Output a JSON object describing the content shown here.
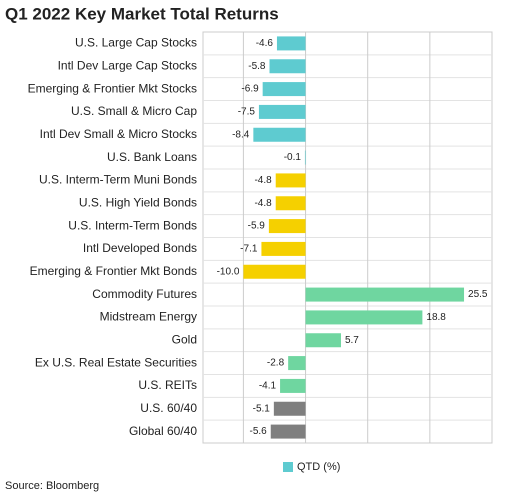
{
  "chart_data": {
    "type": "bar",
    "orientation": "horizontal",
    "title": "Q1 2022 Key Market Total Returns",
    "categories": [
      "U.S. Large Cap Stocks",
      "Intl Dev Large Cap Stocks",
      "Emerging & Frontier Mkt Stocks",
      "U.S. Small & Micro Cap",
      "Intl Dev Small & Micro Stocks",
      "U.S. Bank Loans",
      "U.S. Interm-Term Muni Bonds",
      "U.S. High Yield Bonds",
      "U.S. Interm-Term Bonds",
      "Intl Developed Bonds",
      "Emerging & Frontier Mkt Bonds",
      "Commodity Futures",
      "Midstream Energy",
      "Gold",
      "Ex U.S. Real Estate Securities",
      "U.S. REITs",
      "U.S. 60/40",
      "Global 60/40"
    ],
    "series": [
      {
        "name": "QTD (%)",
        "color": "#5ecbd0",
        "values": [
          -4.6,
          -5.8,
          -6.9,
          -7.5,
          -8.4,
          -0.1,
          -4.8,
          -4.8,
          -5.9,
          -7.1,
          -10.0,
          25.5,
          18.8,
          5.7,
          -2.8,
          -4.1,
          -5.1,
          -5.6
        ],
        "value_labels": [
          "-4.6",
          "-5.8",
          "-6.9",
          "-7.5",
          "-8.4",
          "-0.1",
          "-4.8",
          "-4.8",
          "-5.9",
          "-7.1",
          "-10.0",
          "25.5",
          "18.8",
          "5.7",
          "-2.8",
          "-4.1",
          "-5.1",
          "-5.6"
        ],
        "colors": [
          "#5ecbd0",
          "#5ecbd0",
          "#5ecbd0",
          "#5ecbd0",
          "#5ecbd0",
          "#5ecbd0",
          "#f5d000",
          "#f5d000",
          "#f5d000",
          "#f5d000",
          "#f5d000",
          "#6fd6a0",
          "#6fd6a0",
          "#6fd6a0",
          "#6fd6a0",
          "#6fd6a0",
          "#7f7f7f",
          "#7f7f7f"
        ]
      }
    ],
    "xlim": [
      -16.5,
      30
    ],
    "xticks": [
      -10,
      0,
      10,
      20
    ],
    "grid": true,
    "show_tick_labels": false,
    "legend": "bottom",
    "source": "Source: Bloomberg"
  }
}
